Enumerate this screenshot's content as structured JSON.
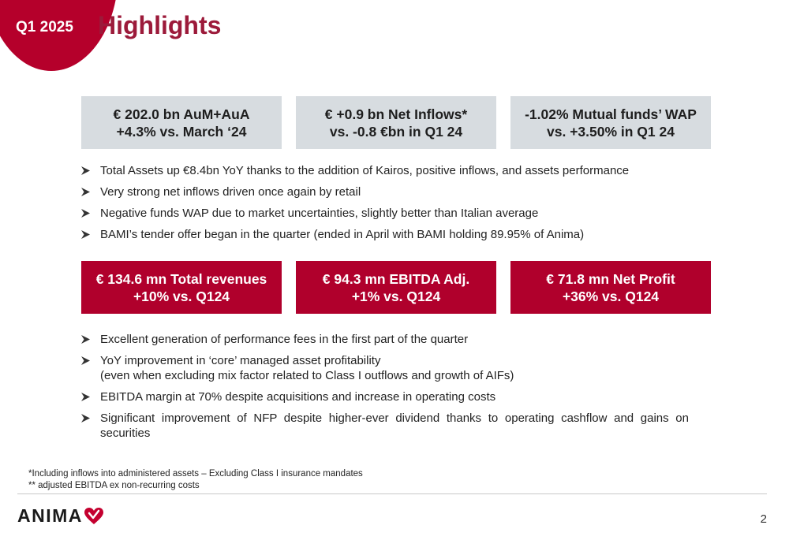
{
  "header": {
    "period": "Q1 2025",
    "title": "Highlights"
  },
  "kpi_top": [
    {
      "line1": "€ 202.0 bn AuM+AuA",
      "line2": "+4.3% vs. March ‘24"
    },
    {
      "line1": "€ +0.9 bn Net Inflows*",
      "line2": "vs. -0.8 €bn in Q1 24"
    },
    {
      "line1": "-1.02% Mutual funds’ WAP",
      "line2": "vs. +3.50% in Q1 24"
    }
  ],
  "bullets_top": [
    "Total Assets up €8.4bn YoY thanks to the addition of Kairos, positive inflows, and assets performance",
    "Very strong net inflows driven once again by retail",
    "Negative funds WAP due to market uncertainties, slightly better than Italian average",
    "BAMI’s tender offer began in the quarter (ended in April with BAMI holding 89.95% of Anima)"
  ],
  "kpi_bottom": [
    {
      "line1": "€ 134.6 mn Total revenues",
      "line2": "+10% vs. Q124"
    },
    {
      "line1": "€ 94.3 mn EBITDA Adj.",
      "line2": "+1% vs. Q124"
    },
    {
      "line1": "€ 71.8 mn Net Profit",
      "line2": "+36% vs. Q124"
    }
  ],
  "bullets_bottom": [
    {
      "line1": "Excellent generation of performance fees in the first part of the quarter",
      "line2": ""
    },
    {
      "line1": "YoY improvement in ‘core’ managed asset profitability",
      "line2": "(even when excluding mix factor related to Class I outflows and growth of AIFs)"
    },
    {
      "line1": "EBITDA margin at 70% despite acquisitions and increase in operating costs",
      "line2": ""
    },
    {
      "line1": "Significant improvement of NFP despite higher-ever dividend thanks to operating cashflow and gains on securities",
      "line2": ""
    }
  ],
  "footnotes": [
    "*Including inflows into administered assets – Excluding Class I insurance mandates",
    "** adjusted EBITDA ex non-recurring costs"
  ],
  "footer": {
    "logo_text": "ANIMA",
    "page_number": "2"
  },
  "colors": {
    "brand_red": "#b0002c",
    "title_red": "#9c1a3a",
    "kpi_grey": "#d7dce0"
  },
  "icons": {
    "bullet": "arrow-bullet-icon",
    "logo_mark": "heart-arrow-logo-icon"
  }
}
